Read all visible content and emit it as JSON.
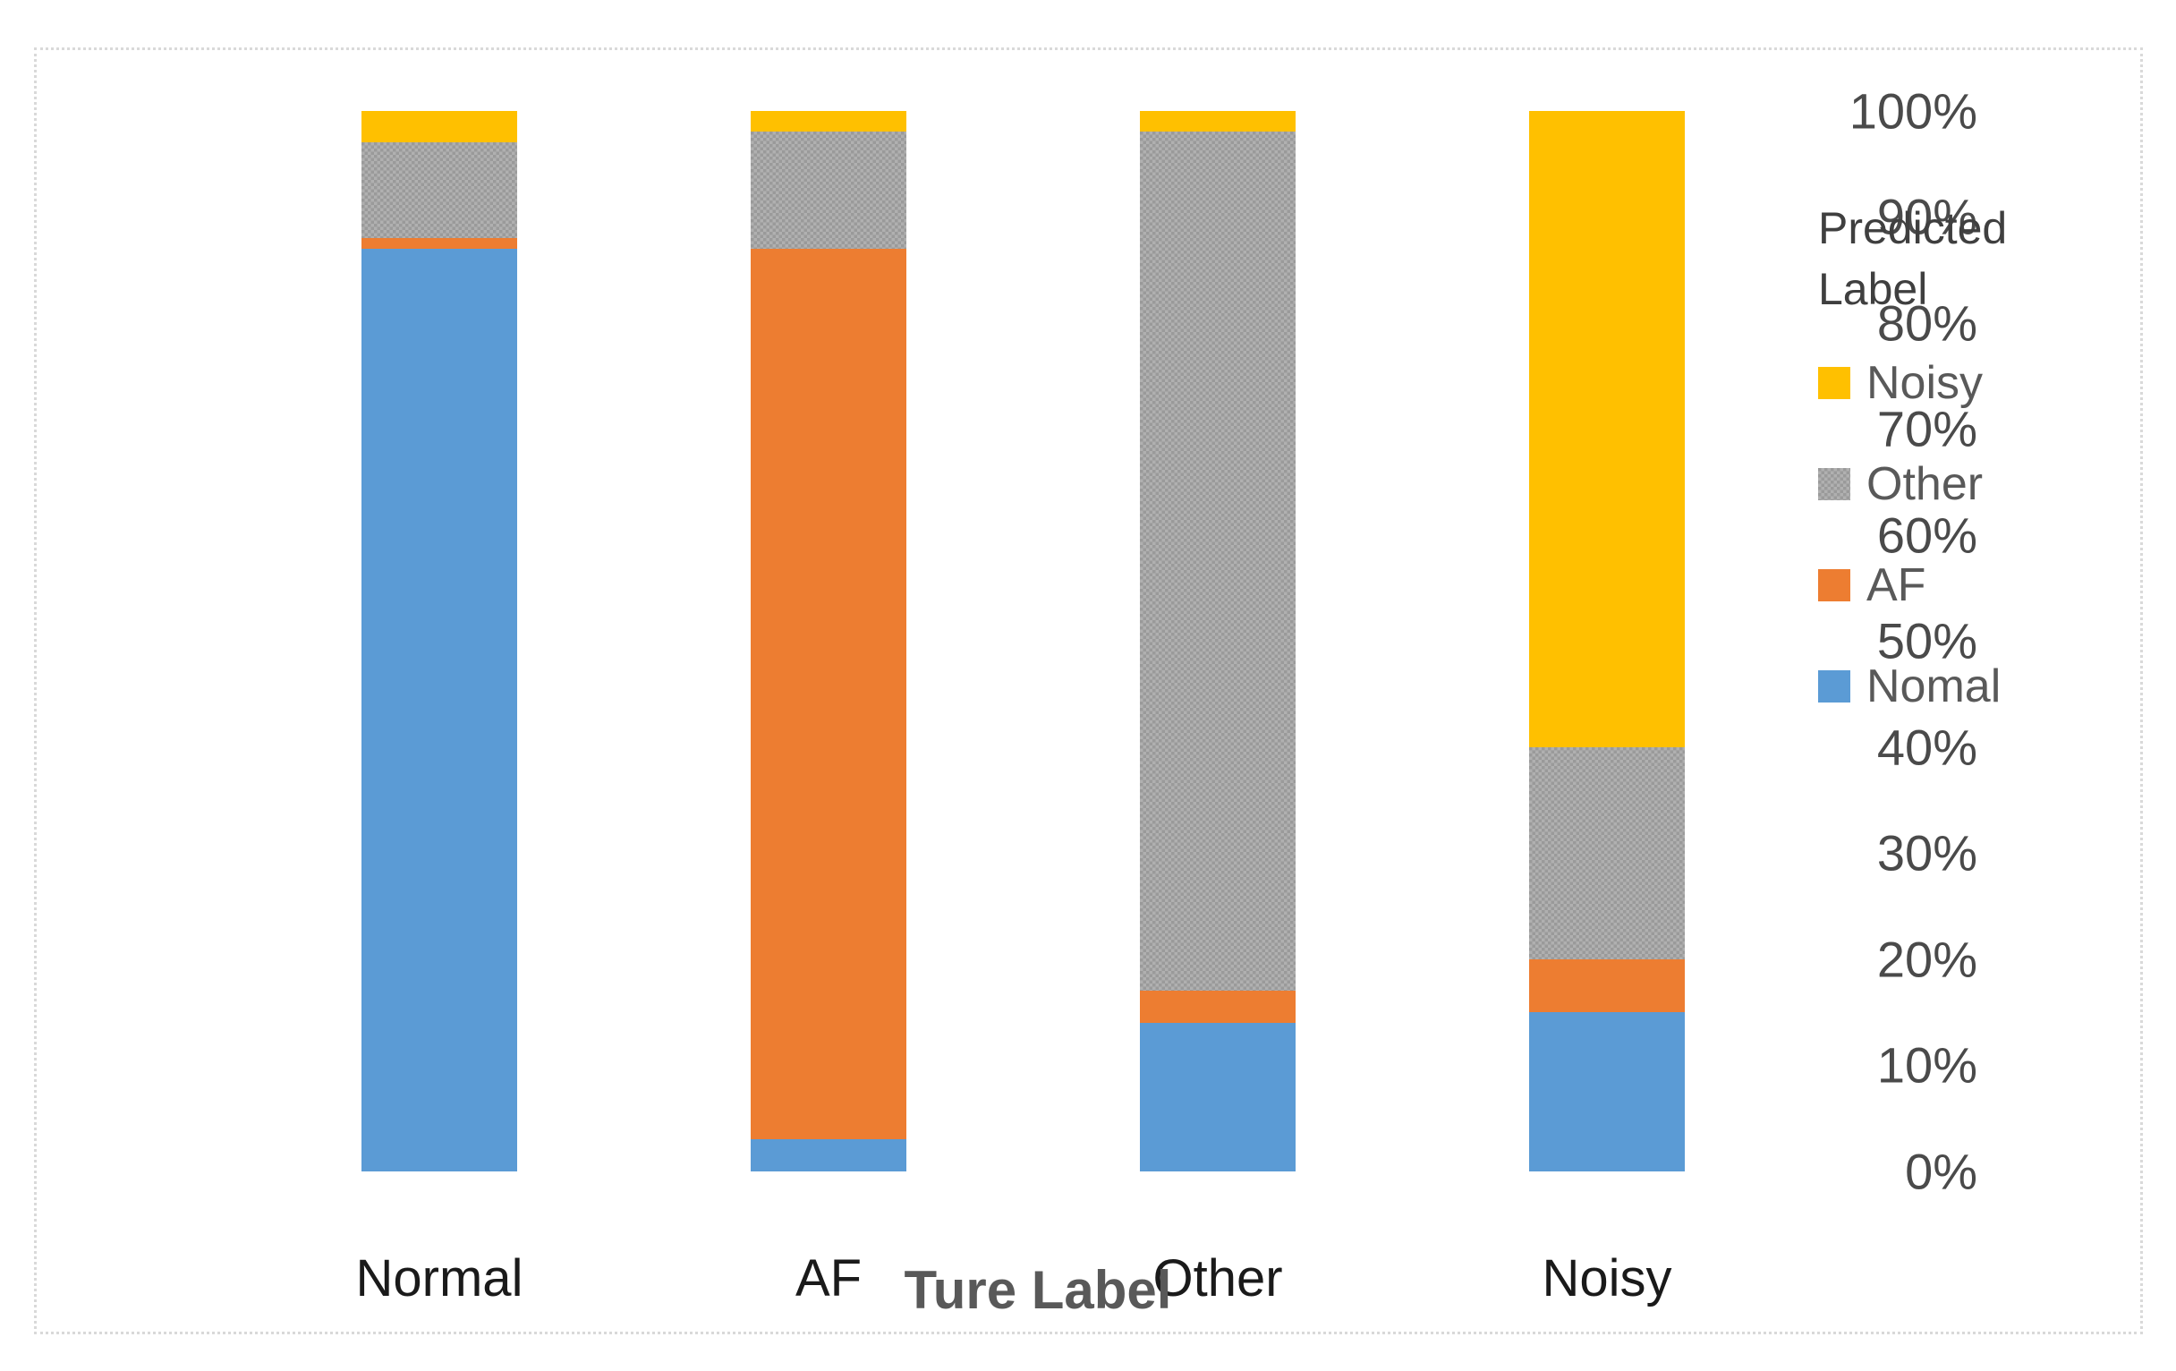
{
  "figure": {
    "background": "#ffffff",
    "frame_border_color": "#d9d9d9"
  },
  "chart_data": {
    "type": "bar",
    "stacked": true,
    "units": "percent",
    "title": "",
    "xlabel": "Ture Label",
    "ylabel": "",
    "categories": [
      "Normal",
      "AF",
      "Other",
      "Noisy"
    ],
    "series": [
      {
        "name": "Nomal",
        "color": "#5B9BD5",
        "pattern": "solid",
        "values": [
          87,
          3,
          14,
          15
        ]
      },
      {
        "name": "AF",
        "color": "#ED7D31",
        "pattern": "solid",
        "values": [
          1,
          84,
          3,
          5
        ]
      },
      {
        "name": "Other",
        "color": "#A5A5A5",
        "pattern": "checker",
        "values": [
          9,
          11,
          81,
          20
        ]
      },
      {
        "name": "Noisy",
        "color": "#FFC000",
        "pattern": "solid",
        "values": [
          3,
          2,
          2,
          60
        ]
      }
    ],
    "ylim": [
      0,
      100
    ],
    "yticks": [
      "100%",
      "90%",
      "80%",
      "70%",
      "60%",
      "50%",
      "40%",
      "30%",
      "20%",
      "10%",
      "0%"
    ],
    "grid": false,
    "legend_position": "right"
  },
  "legend": {
    "title": "Predicted Label",
    "items": [
      {
        "label": "Noisy",
        "color": "#FFC000",
        "pattern": "solid"
      },
      {
        "label": "Other",
        "color": "#A5A5A5",
        "pattern": "checker"
      },
      {
        "label": "AF",
        "color": "#ED7D31",
        "pattern": "solid"
      },
      {
        "label": "Nomal",
        "color": "#5B9BD5",
        "pattern": "solid"
      }
    ]
  }
}
